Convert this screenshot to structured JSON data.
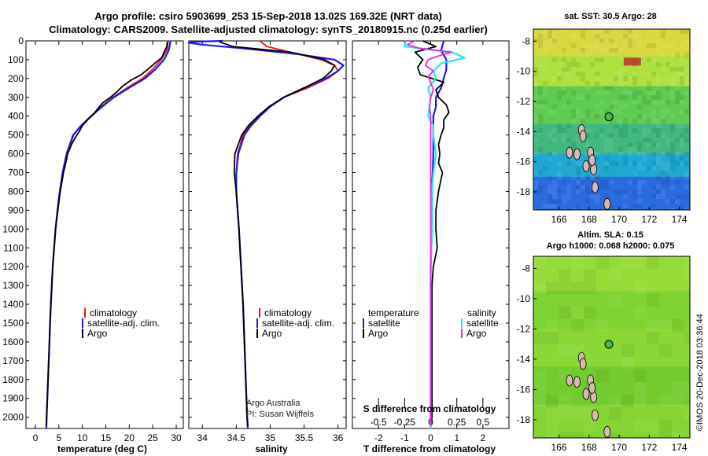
{
  "title": {
    "line1": "Argo profile: csiro 5903699_253 15-Sep-2018 13.02S 169.32E (NRT data)",
    "line2": "Climatology: CARS2009. Satellite-adjusted climatology: synTS_20180915.nc (0.25d earlier)"
  },
  "colors": {
    "climatology": "#ee1111",
    "satellite": "#1a1aee",
    "argo": "#000000",
    "satellite_salinity": "#22e8e8",
    "argo_salinity": "#ee22ee"
  },
  "chart_data": [
    {
      "id": "temperature",
      "type": "line",
      "xlabel": "temperature (deg C)",
      "ylabel": "",
      "xlim": [
        -2,
        31.5
      ],
      "ylim": [
        2060,
        0
      ],
      "xticks": [
        0,
        5,
        10,
        15,
        20,
        25,
        30
      ],
      "xtick_labels": [
        "0",
        "5",
        "10",
        "15",
        "20",
        "25",
        "30"
      ],
      "yticks": [
        0,
        100,
        200,
        300,
        400,
        500,
        600,
        700,
        800,
        900,
        1000,
        1100,
        1200,
        1300,
        1400,
        1500,
        1600,
        1700,
        1800,
        1900,
        2000
      ],
      "ytick_labels": [
        "0",
        "100",
        "200",
        "300",
        "400",
        "500",
        "600",
        "700",
        "800",
        "900",
        "1000",
        "1100",
        "1200",
        "1300",
        "1400",
        "1500",
        "1600",
        "1700",
        "1800",
        "1900",
        "2000"
      ],
      "legend": [
        "climatology",
        "satellite-adj. clim.",
        "Argo"
      ],
      "series": [
        {
          "name": "climatology",
          "color_key": "climatology",
          "y": [
            0,
            50,
            100,
            150,
            200,
            250,
            300,
            350,
            400,
            450,
            500,
            600,
            700,
            800,
            900,
            1000,
            1200,
            1400,
            1600,
            1800,
            2000,
            2060
          ],
          "x": [
            28.3,
            28.0,
            26.8,
            25.0,
            22.8,
            19.5,
            16.5,
            14.0,
            11.8,
            9.7,
            8.0,
            6.6,
            5.8,
            5.2,
            4.7,
            4.3,
            3.7,
            3.3,
            3.0,
            2.7,
            2.4,
            2.35
          ]
        },
        {
          "name": "satellite-adj. clim.",
          "color_key": "satellite",
          "y": [
            0,
            50,
            100,
            150,
            200,
            250,
            300,
            350,
            400,
            450,
            500,
            600,
            700,
            800,
            900,
            1000,
            1200,
            1400,
            1600,
            1800,
            2000,
            2060
          ],
          "x": [
            28.8,
            28.4,
            27.4,
            25.6,
            23.3,
            19.9,
            16.7,
            14.2,
            11.9,
            9.8,
            8.1,
            6.7,
            5.8,
            5.2,
            4.7,
            4.3,
            3.7,
            3.3,
            3.0,
            2.7,
            2.4,
            2.35
          ]
        },
        {
          "name": "Argo",
          "color_key": "argo",
          "y": [
            5,
            30,
            60,
            90,
            120,
            150,
            180,
            210,
            240,
            270,
            300,
            330,
            360,
            390,
            420,
            450,
            480,
            510,
            550,
            600,
            700,
            800,
            900,
            1000,
            1100,
            1200,
            1300,
            1400,
            1500,
            1600,
            1700,
            1800,
            1900,
            2000,
            2045
          ],
          "x": [
            28.1,
            28.0,
            27.4,
            26.9,
            25.4,
            24.0,
            22.5,
            20.3,
            18.6,
            17.4,
            16.0,
            14.3,
            13.3,
            12.4,
            11.1,
            10.0,
            9.4,
            8.6,
            7.7,
            6.9,
            6.0,
            5.3,
            4.8,
            4.3,
            4.0,
            3.7,
            3.5,
            3.3,
            3.1,
            3.0,
            2.85,
            2.7,
            2.55,
            2.4,
            2.3
          ]
        }
      ]
    },
    {
      "id": "salinity",
      "type": "line",
      "xlabel": "salinity",
      "xlim": [
        33.8,
        36.12
      ],
      "ylim": [
        2060,
        0
      ],
      "xticks": [
        34,
        34.5,
        35,
        35.5,
        36
      ],
      "xtick_labels": [
        "34",
        "34.5",
        "35",
        "35.5",
        "36"
      ],
      "legend": [
        "climatology",
        "satellite-adj. clim.",
        "Argo"
      ],
      "series": [
        {
          "name": "climatology",
          "color_key": "climatology",
          "y": [
            0,
            30,
            60,
            100,
            130,
            160,
            200,
            250,
            300,
            350,
            400,
            450,
            500,
            600,
            700,
            800,
            900,
            1000,
            1200,
            1400,
            1600,
            1800,
            2000,
            2060
          ],
          "x": [
            34.85,
            34.95,
            35.3,
            35.75,
            35.95,
            36.0,
            35.85,
            35.55,
            35.2,
            35.0,
            34.85,
            34.7,
            34.6,
            34.52,
            34.5,
            34.5,
            34.52,
            34.54,
            34.57,
            34.6,
            34.62,
            34.64,
            34.66,
            34.67
          ]
        },
        {
          "name": "satellite-adj. clim.",
          "color_key": "satellite",
          "y": [
            0,
            5,
            10,
            20,
            40,
            70,
            100,
            130,
            160,
            200,
            250,
            300,
            350,
            400,
            450,
            500,
            600,
            700,
            800,
            900,
            1000,
            1200,
            1400,
            1600,
            1800,
            2000,
            2060
          ],
          "x": [
            34.3,
            33.85,
            33.8,
            34.0,
            34.6,
            35.4,
            35.95,
            36.08,
            36.0,
            35.82,
            35.5,
            35.2,
            35.0,
            34.85,
            34.72,
            34.62,
            34.53,
            34.5,
            34.5,
            34.52,
            34.54,
            34.57,
            34.6,
            34.62,
            34.64,
            34.66,
            34.67
          ]
        },
        {
          "name": "Argo",
          "color_key": "argo",
          "y": [
            5,
            30,
            60,
            100,
            130,
            160,
            200,
            250,
            300,
            350,
            400,
            450,
            500,
            550,
            600,
            700,
            800,
            900,
            1000,
            1200,
            1400,
            1600,
            1800,
            2000,
            2045
          ],
          "x": [
            34.25,
            34.45,
            35.3,
            35.8,
            35.95,
            35.9,
            35.78,
            35.5,
            35.2,
            34.98,
            34.82,
            34.68,
            34.58,
            34.53,
            34.48,
            34.47,
            34.5,
            34.52,
            34.54,
            34.57,
            34.6,
            34.62,
            34.64,
            34.66,
            34.67
          ]
        }
      ],
      "annotation_line1": "Argo Australia",
      "annotation_line2": "PI: Susan Wijffels"
    },
    {
      "id": "difference",
      "type": "line",
      "xlabel": "T difference from climatology",
      "xlabel_top": "S difference from climatology",
      "xlim": [
        -3.0,
        3.0
      ],
      "ylim": [
        2060,
        0
      ],
      "xticks": [
        -2,
        -1,
        0,
        1,
        2
      ],
      "xtick_labels": [
        "-2",
        "-1",
        "0",
        "1",
        "2"
      ],
      "s_ticks": [
        -0.5,
        -0.25,
        0,
        0.25,
        0.5
      ],
      "s_tick_labels": [
        "-0.5",
        "-0.25",
        "0",
        "0.25",
        "0.5"
      ],
      "s_scale": 0.25,
      "legend_headers": [
        "temperature",
        "salinity"
      ],
      "legend": [
        "satellite",
        "Argo",
        "satellite",
        "Argo"
      ],
      "series": [
        {
          "name": "temperature satellite",
          "color_key": "satellite",
          "y": [
            0,
            50,
            100,
            150,
            200,
            250,
            300,
            350,
            400,
            500,
            600,
            800,
            1000,
            1200,
            1500,
            2000,
            2060
          ],
          "x": [
            0.5,
            0.4,
            0.6,
            0.6,
            0.5,
            0.4,
            0.2,
            0.2,
            0.1,
            0.1,
            0.1,
            0.05,
            0.05,
            0.0,
            0.0,
            0.0,
            0.0
          ]
        },
        {
          "name": "temperature Argo",
          "color_key": "argo",
          "y": [
            0,
            30,
            60,
            100,
            140,
            180,
            220,
            260,
            300,
            340,
            380,
            420,
            460,
            500,
            550,
            600,
            650,
            700,
            800,
            900,
            1000,
            1100,
            1200,
            1300,
            1400,
            1600,
            1800,
            2000,
            2045
          ],
          "x": [
            -0.3,
            0.2,
            -0.6,
            -0.3,
            -0.5,
            -0.4,
            0.5,
            0.2,
            0.3,
            0.6,
            0.7,
            0.5,
            0.5,
            0.4,
            0.3,
            0.35,
            0.3,
            0.45,
            0.3,
            0.2,
            0.2,
            0.25,
            0.1,
            0.05,
            0.05,
            0.05,
            0.05,
            0.05,
            0.0
          ]
        },
        {
          "name": "salinity satellite",
          "color_key": "satellite_salinity",
          "y": [
            0,
            30,
            60,
            90,
            120,
            160,
            200,
            250,
            300,
            350,
            400,
            450,
            500,
            600,
            700,
            800,
            900,
            1000,
            1200,
            1400,
            1600,
            1800,
            2000,
            2060
          ],
          "x": [
            -0.95,
            -1.0,
            0.8,
            1.3,
            0.4,
            0.1,
            0.2,
            -0.1,
            0.0,
            -0.05,
            -0.1,
            0.1,
            0.1,
            0.2,
            0.1,
            0.05,
            0.05,
            0.05,
            0.0,
            0.0,
            0.0,
            0.0,
            0.0,
            0.0
          ]
        },
        {
          "name": "salinity Argo",
          "color_key": "argo_salinity",
          "y": [
            0,
            20,
            40,
            60,
            80,
            100,
            130,
            160,
            190,
            220,
            260,
            300,
            350,
            400,
            500,
            600,
            800,
            1000,
            1500,
            2000,
            2045
          ],
          "x": [
            -0.6,
            -0.9,
            -0.4,
            0.8,
            0.3,
            -0.1,
            -0.2,
            0.1,
            -0.1,
            0.0,
            0.1,
            0.0,
            -0.05,
            0.0,
            0.0,
            0.0,
            0.0,
            0.0,
            0.0,
            0.0,
            0.0
          ]
        }
      ]
    }
  ],
  "maps": [
    {
      "id": "sst",
      "title_line1": "sat. SST: 30.5 Argo: 28",
      "title_line2": "",
      "lon_range": [
        164.3,
        174.7
      ],
      "lat_range": [
        -19.2,
        -7.2
      ],
      "xticks": [
        166,
        168,
        170,
        172,
        174
      ],
      "yticks": [
        -8,
        -10,
        -12,
        -14,
        -16,
        -18
      ],
      "float": {
        "lon": 169.32,
        "lat": -13.02
      },
      "field_zones": [
        {
          "lat_to": -9.0,
          "color": "#d8d840"
        },
        {
          "lat_to": -11.0,
          "color": "#aee040"
        },
        {
          "lat_to": -13.5,
          "color": "#5ecc50"
        },
        {
          "lat_to": -15.5,
          "color": "#40b880"
        },
        {
          "lat_to": -17.0,
          "color": "#20a8d0"
        },
        {
          "lat_to": -19.2,
          "color": "#2a6ce0"
        }
      ]
    },
    {
      "id": "sla",
      "title_line1": "Altim. SLA: 0.15",
      "title_line2": "Argo h1000: 0.068 h2000: 0.075",
      "lon_range": [
        164.3,
        174.7
      ],
      "lat_range": [
        -19.2,
        -7.2
      ],
      "xticks": [
        166,
        168,
        170,
        172,
        174
      ],
      "yticks": [
        -8,
        -10,
        -12,
        -14,
        -16,
        -18
      ],
      "float": {
        "lon": 169.32,
        "lat": -13.02
      },
      "field_zones": [
        {
          "lat_to": -9.5,
          "color": "#96dc38"
        },
        {
          "lat_to": -12.0,
          "color": "#7ed432"
        },
        {
          "lat_to": -14.5,
          "color": "#8ad836"
        },
        {
          "lat_to": -17.0,
          "color": "#72cc30"
        },
        {
          "lat_to": -19.2,
          "color": "#86d434"
        }
      ]
    }
  ],
  "islands": [
    {
      "lon": 166.7,
      "lat": -15.4
    },
    {
      "lon": 167.2,
      "lat": -15.5
    },
    {
      "lon": 167.8,
      "lat": -16.3
    },
    {
      "lon": 168.3,
      "lat": -16.5
    },
    {
      "lon": 168.4,
      "lat": -17.7
    },
    {
      "lon": 169.2,
      "lat": -18.8
    },
    {
      "lon": 168.1,
      "lat": -15.4
    },
    {
      "lon": 167.5,
      "lat": -13.9
    },
    {
      "lon": 167.6,
      "lat": -14.3
    },
    {
      "lon": 168.2,
      "lat": -15.9
    }
  ],
  "watermark": "©IMOS 20-Dec-2018 03:36:44"
}
